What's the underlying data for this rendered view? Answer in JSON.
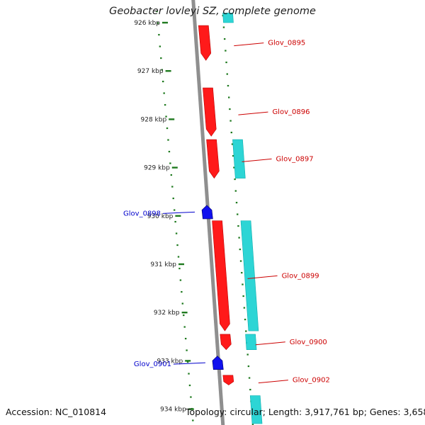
{
  "title": "Geobacter lovleyi SZ, complete genome",
  "footer": {
    "accession": "Accession: NC_010814",
    "summary": "Topology: circular; Length: 3,917,761 bp; Genes: 3,658"
  },
  "colors": {
    "forward_gene": "#ff1a1a",
    "reverse_gene": "#1010ee",
    "feature_bar": "#22d3d3",
    "backbone": "#8f8f8f",
    "tick": "#1f7a1f",
    "forward_label": "#cc0000",
    "reverse_label": "#0000cc"
  },
  "ruler": {
    "unit": "kbp",
    "ticks": [
      {
        "kbp": 926,
        "label": "926 kbp"
      },
      {
        "kbp": 927,
        "label": "927 kbp"
      },
      {
        "kbp": 928,
        "label": "928 kbp"
      },
      {
        "kbp": 929,
        "label": "929 kbp"
      },
      {
        "kbp": 930,
        "label": "930 kbp"
      },
      {
        "kbp": 931,
        "label": "931 kbp"
      },
      {
        "kbp": 932,
        "label": "932 kbp"
      },
      {
        "kbp": 933,
        "label": "933 kbp"
      },
      {
        "kbp": 934,
        "label": "934 kbp"
      }
    ]
  },
  "genes": [
    {
      "name": "Glov_0895",
      "strand": "+",
      "start_kbp": 926.06,
      "end_kbp": 926.78
    },
    {
      "name": "Glov_0896",
      "strand": "+",
      "start_kbp": 927.35,
      "end_kbp": 928.35
    },
    {
      "name": "Glov_0897",
      "strand": "+",
      "start_kbp": 928.42,
      "end_kbp": 929.22
    },
    {
      "name": "Glov_0898",
      "strand": "-",
      "start_kbp": 929.78,
      "end_kbp": 930.06
    },
    {
      "name": "Glov_0899",
      "strand": "+",
      "start_kbp": 930.1,
      "end_kbp": 932.38
    },
    {
      "name": "Glov_0900",
      "strand": "+",
      "start_kbp": 932.45,
      "end_kbp": 932.77
    },
    {
      "name": "Glov_0901",
      "strand": "-",
      "start_kbp": 932.9,
      "end_kbp": 933.18
    },
    {
      "name": "Glov_0902",
      "strand": "+",
      "start_kbp": 933.3,
      "end_kbp": 933.5
    }
  ],
  "features": [
    {
      "start_kbp": 925.8,
      "end_kbp": 926.0
    },
    {
      "start_kbp": 928.42,
      "end_kbp": 929.22
    },
    {
      "start_kbp": 930.1,
      "end_kbp": 932.38
    },
    {
      "start_kbp": 932.45,
      "end_kbp": 932.77
    },
    {
      "start_kbp": 933.72,
      "end_kbp": 934.3
    }
  ]
}
